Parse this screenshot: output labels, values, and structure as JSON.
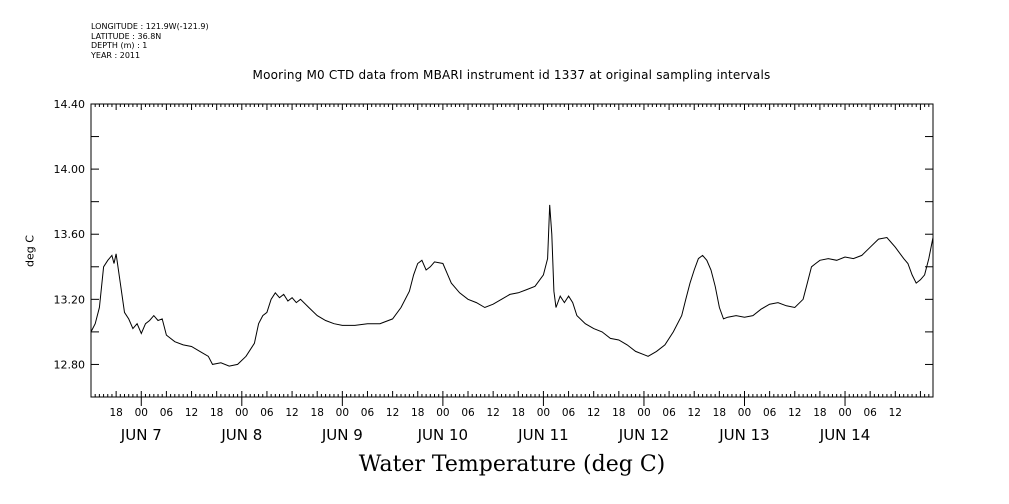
{
  "header": {
    "longitude": "LONGITUDE : 121.9W(-121.9)",
    "latitude": "LATITUDE : 36.8N",
    "depth": "DEPTH (m) : 1",
    "year": "YEAR : 2011"
  },
  "chart_data": {
    "type": "line",
    "title": "Mooring M0 CTD data from MBARI instrument id 1337 at original sampling intervals",
    "xlabel": "Water Temperature (deg C)",
    "ylabel": "deg C",
    "ylim": [
      12.6,
      14.4
    ],
    "yticks": [
      12.8,
      13.2,
      13.6,
      14.0,
      14.4
    ],
    "ytick_labels": [
      "12.80",
      "13.20",
      "13.60",
      "14.00",
      "14.40"
    ],
    "xlim": [
      "2011-06-06 12:00",
      "2011-06-14 21:00"
    ],
    "hour_tick_labels": [
      "18",
      "00",
      "06",
      "12",
      "18",
      "00",
      "06",
      "12",
      "18",
      "00",
      "06",
      "12",
      "18",
      "00",
      "06",
      "12",
      "18",
      "00",
      "06",
      "12",
      "18",
      "00",
      "06",
      "12",
      "18",
      "00",
      "06",
      "12",
      "18",
      "00",
      "06",
      "12"
    ],
    "day_labels": [
      "JUN  7",
      "JUN  8",
      "JUN  9",
      "JUN 10",
      "JUN 11",
      "JUN 12",
      "JUN 13",
      "JUN 14"
    ],
    "series": [
      {
        "points": [
          [
            "2011-06-06 12:00",
            13.0
          ],
          [
            "2011-06-06 13:00",
            13.05
          ],
          [
            "2011-06-06 14:00",
            13.15
          ],
          [
            "2011-06-06 15:00",
            13.4
          ],
          [
            "2011-06-06 16:00",
            13.44
          ],
          [
            "2011-06-06 17:00",
            13.47
          ],
          [
            "2011-06-06 17:30",
            13.42
          ],
          [
            "2011-06-06 18:00",
            13.48
          ],
          [
            "2011-06-06 19:00",
            13.3
          ],
          [
            "2011-06-06 20:00",
            13.12
          ],
          [
            "2011-06-06 21:00",
            13.08
          ],
          [
            "2011-06-06 22:00",
            13.02
          ],
          [
            "2011-06-06 23:00",
            13.05
          ],
          [
            "2011-06-07 00:00",
            12.99
          ],
          [
            "2011-06-07 01:00",
            13.05
          ],
          [
            "2011-06-07 02:00",
            13.07
          ],
          [
            "2011-06-07 03:00",
            13.1
          ],
          [
            "2011-06-07 04:00",
            13.07
          ],
          [
            "2011-06-07 05:00",
            13.08
          ],
          [
            "2011-06-07 06:00",
            12.98
          ],
          [
            "2011-06-07 08:00",
            12.94
          ],
          [
            "2011-06-07 10:00",
            12.92
          ],
          [
            "2011-06-07 12:00",
            12.91
          ],
          [
            "2011-06-07 14:00",
            12.88
          ],
          [
            "2011-06-07 16:00",
            12.85
          ],
          [
            "2011-06-07 17:00",
            12.8
          ],
          [
            "2011-06-07 19:00",
            12.81
          ],
          [
            "2011-06-07 21:00",
            12.79
          ],
          [
            "2011-06-07 23:00",
            12.8
          ],
          [
            "2011-06-08 01:00",
            12.85
          ],
          [
            "2011-06-08 03:00",
            12.93
          ],
          [
            "2011-06-08 04:00",
            13.05
          ],
          [
            "2011-06-08 05:00",
            13.1
          ],
          [
            "2011-06-08 06:00",
            13.12
          ],
          [
            "2011-06-08 07:00",
            13.2
          ],
          [
            "2011-06-08 08:00",
            13.24
          ],
          [
            "2011-06-08 09:00",
            13.21
          ],
          [
            "2011-06-08 10:00",
            13.23
          ],
          [
            "2011-06-08 11:00",
            13.19
          ],
          [
            "2011-06-08 12:00",
            13.21
          ],
          [
            "2011-06-08 13:00",
            13.18
          ],
          [
            "2011-06-08 14:00",
            13.2
          ],
          [
            "2011-06-08 16:00",
            13.15
          ],
          [
            "2011-06-08 18:00",
            13.1
          ],
          [
            "2011-06-08 20:00",
            13.07
          ],
          [
            "2011-06-08 22:00",
            13.05
          ],
          [
            "2011-06-09 00:00",
            13.04
          ],
          [
            "2011-06-09 03:00",
            13.04
          ],
          [
            "2011-06-09 06:00",
            13.05
          ],
          [
            "2011-06-09 09:00",
            13.05
          ],
          [
            "2011-06-09 12:00",
            13.08
          ],
          [
            "2011-06-09 14:00",
            13.15
          ],
          [
            "2011-06-09 16:00",
            13.25
          ],
          [
            "2011-06-09 17:00",
            13.35
          ],
          [
            "2011-06-09 18:00",
            13.42
          ],
          [
            "2011-06-09 19:00",
            13.44
          ],
          [
            "2011-06-09 20:00",
            13.38
          ],
          [
            "2011-06-09 21:00",
            13.4
          ],
          [
            "2011-06-09 22:00",
            13.43
          ],
          [
            "2011-06-10 00:00",
            13.42
          ],
          [
            "2011-06-10 01:00",
            13.36
          ],
          [
            "2011-06-10 02:00",
            13.3
          ],
          [
            "2011-06-10 04:00",
            13.24
          ],
          [
            "2011-06-10 06:00",
            13.2
          ],
          [
            "2011-06-10 08:00",
            13.18
          ],
          [
            "2011-06-10 10:00",
            13.15
          ],
          [
            "2011-06-10 12:00",
            13.17
          ],
          [
            "2011-06-10 14:00",
            13.2
          ],
          [
            "2011-06-10 16:00",
            13.23
          ],
          [
            "2011-06-10 18:00",
            13.24
          ],
          [
            "2011-06-10 20:00",
            13.26
          ],
          [
            "2011-06-10 22:00",
            13.28
          ],
          [
            "2011-06-11 00:00",
            13.35
          ],
          [
            "2011-06-11 01:00",
            13.45
          ],
          [
            "2011-06-11 01:30",
            13.78
          ],
          [
            "2011-06-11 02:00",
            13.6
          ],
          [
            "2011-06-11 02:30",
            13.25
          ],
          [
            "2011-06-11 03:00",
            13.15
          ],
          [
            "2011-06-11 04:00",
            13.22
          ],
          [
            "2011-06-11 05:00",
            13.18
          ],
          [
            "2011-06-11 06:00",
            13.22
          ],
          [
            "2011-06-11 07:00",
            13.18
          ],
          [
            "2011-06-11 08:00",
            13.1
          ],
          [
            "2011-06-11 10:00",
            13.05
          ],
          [
            "2011-06-11 12:00",
            13.02
          ],
          [
            "2011-06-11 14:00",
            13.0
          ],
          [
            "2011-06-11 16:00",
            12.96
          ],
          [
            "2011-06-11 18:00",
            12.95
          ],
          [
            "2011-06-11 20:00",
            12.92
          ],
          [
            "2011-06-11 22:00",
            12.88
          ],
          [
            "2011-06-12 00:00",
            12.86
          ],
          [
            "2011-06-12 01:00",
            12.85
          ],
          [
            "2011-06-12 03:00",
            12.88
          ],
          [
            "2011-06-12 05:00",
            12.92
          ],
          [
            "2011-06-12 07:00",
            13.0
          ],
          [
            "2011-06-12 09:00",
            13.1
          ],
          [
            "2011-06-12 10:00",
            13.2
          ],
          [
            "2011-06-12 11:00",
            13.3
          ],
          [
            "2011-06-12 12:00",
            13.38
          ],
          [
            "2011-06-12 13:00",
            13.45
          ],
          [
            "2011-06-12 14:00",
            13.47
          ],
          [
            "2011-06-12 15:00",
            13.44
          ],
          [
            "2011-06-12 16:00",
            13.38
          ],
          [
            "2011-06-12 17:00",
            13.28
          ],
          [
            "2011-06-12 18:00",
            13.15
          ],
          [
            "2011-06-12 19:00",
            13.08
          ],
          [
            "2011-06-12 20:00",
            13.09
          ],
          [
            "2011-06-12 22:00",
            13.1
          ],
          [
            "2011-06-13 00:00",
            13.09
          ],
          [
            "2011-06-13 02:00",
            13.1
          ],
          [
            "2011-06-13 04:00",
            13.14
          ],
          [
            "2011-06-13 06:00",
            13.17
          ],
          [
            "2011-06-13 08:00",
            13.18
          ],
          [
            "2011-06-13 10:00",
            13.16
          ],
          [
            "2011-06-13 12:00",
            13.15
          ],
          [
            "2011-06-13 14:00",
            13.2
          ],
          [
            "2011-06-13 15:00",
            13.3
          ],
          [
            "2011-06-13 16:00",
            13.4
          ],
          [
            "2011-06-13 17:00",
            13.42
          ],
          [
            "2011-06-13 18:00",
            13.44
          ],
          [
            "2011-06-13 20:00",
            13.45
          ],
          [
            "2011-06-13 22:00",
            13.44
          ],
          [
            "2011-06-14 00:00",
            13.46
          ],
          [
            "2011-06-14 02:00",
            13.45
          ],
          [
            "2011-06-14 04:00",
            13.47
          ],
          [
            "2011-06-14 06:00",
            13.52
          ],
          [
            "2011-06-14 08:00",
            13.57
          ],
          [
            "2011-06-14 10:00",
            13.58
          ],
          [
            "2011-06-14 12:00",
            13.52
          ],
          [
            "2011-06-14 14:00",
            13.45
          ],
          [
            "2011-06-14 15:00",
            13.42
          ],
          [
            "2011-06-14 16:00",
            13.35
          ],
          [
            "2011-06-14 17:00",
            13.3
          ],
          [
            "2011-06-14 18:00",
            13.32
          ],
          [
            "2011-06-14 19:00",
            13.35
          ],
          [
            "2011-06-14 20:00",
            13.45
          ],
          [
            "2011-06-14 21:00",
            13.58
          ]
        ]
      }
    ]
  }
}
